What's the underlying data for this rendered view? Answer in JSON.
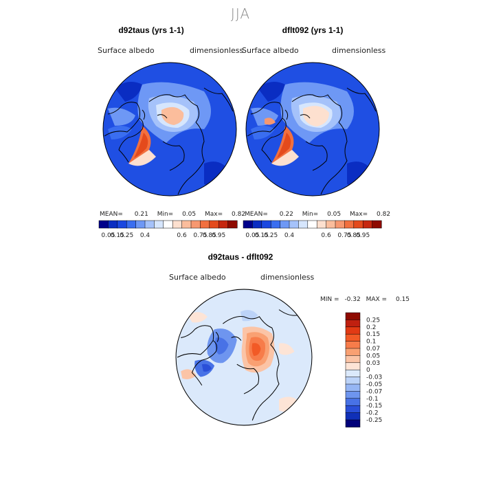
{
  "page": {
    "season_title": "JJA"
  },
  "chart_data": [
    {
      "type": "heatmap",
      "projection": "north polar stereographic",
      "title": "d92taus (yrs 1-1)",
      "left_label": "Surface albedo",
      "right_label": "dimensionless",
      "stats": {
        "mean_label": "MEAN=",
        "mean": "0.21",
        "min_label": "Min=",
        "min": "0.05",
        "max_label": "Max=",
        "max": "0.82"
      },
      "colorbar": {
        "ticks": [
          "0.05",
          "0.15",
          "0.25",
          "0.4",
          "0.6",
          "0.75",
          "0.85",
          "0.95"
        ],
        "colors": [
          "#00008a",
          "#0a2dc2",
          "#1a47e0",
          "#3a6ef0",
          "#6e98f5",
          "#a5c2fa",
          "#d6e6fd",
          "#ffffff",
          "#fde0cf",
          "#fbbd9c",
          "#f79870",
          "#f2703f",
          "#e44a1c",
          "#c6270f",
          "#8e0a00"
        ]
      }
    },
    {
      "type": "heatmap",
      "projection": "north polar stereographic",
      "title": "dflt092 (yrs 1-1)",
      "left_label": "Surface albedo",
      "right_label": "dimensionless",
      "stats": {
        "mean_label": "MEAN=",
        "mean": "0.22",
        "min_label": "Min=",
        "min": "0.05",
        "max_label": "Max=",
        "max": "0.82"
      },
      "colorbar": {
        "ticks": [
          "0.05",
          "0.15",
          "0.25",
          "0.4",
          "0.6",
          "0.75",
          "0.85",
          "0.95"
        ],
        "colors": [
          "#00008a",
          "#0a2dc2",
          "#1a47e0",
          "#3a6ef0",
          "#6e98f5",
          "#a5c2fa",
          "#d6e6fd",
          "#ffffff",
          "#fde0cf",
          "#fbbd9c",
          "#f79870",
          "#f2703f",
          "#e44a1c",
          "#c6270f",
          "#8e0a00"
        ]
      }
    },
    {
      "type": "heatmap",
      "projection": "north polar stereographic",
      "title": "d92taus - dflt092",
      "left_label": "Surface albedo",
      "right_label": "dimensionless",
      "stats": {
        "min_label": "MIN =",
        "min": "-0.32",
        "max_label": "MAX =",
        "max": "0.15"
      },
      "colorbar": {
        "orientation": "vertical",
        "ticks": [
          "0.25",
          "0.2",
          "0.15",
          "0.1",
          "0.07",
          "0.05",
          "0.03",
          "0",
          "-0.03",
          "-0.05",
          "-0.07",
          "-0.1",
          "-0.15",
          "-0.2",
          "-0.25"
        ],
        "colors": [
          "#8e0a00",
          "#c02010",
          "#e23a14",
          "#f25a26",
          "#f77c4a",
          "#f9a072",
          "#fbc4a6",
          "#fde4d6",
          "#dbe9fb",
          "#bcd3f8",
          "#96b6f4",
          "#6e95ef",
          "#4872e6",
          "#2a4fd8",
          "#1030b8",
          "#00007a"
        ]
      }
    }
  ]
}
